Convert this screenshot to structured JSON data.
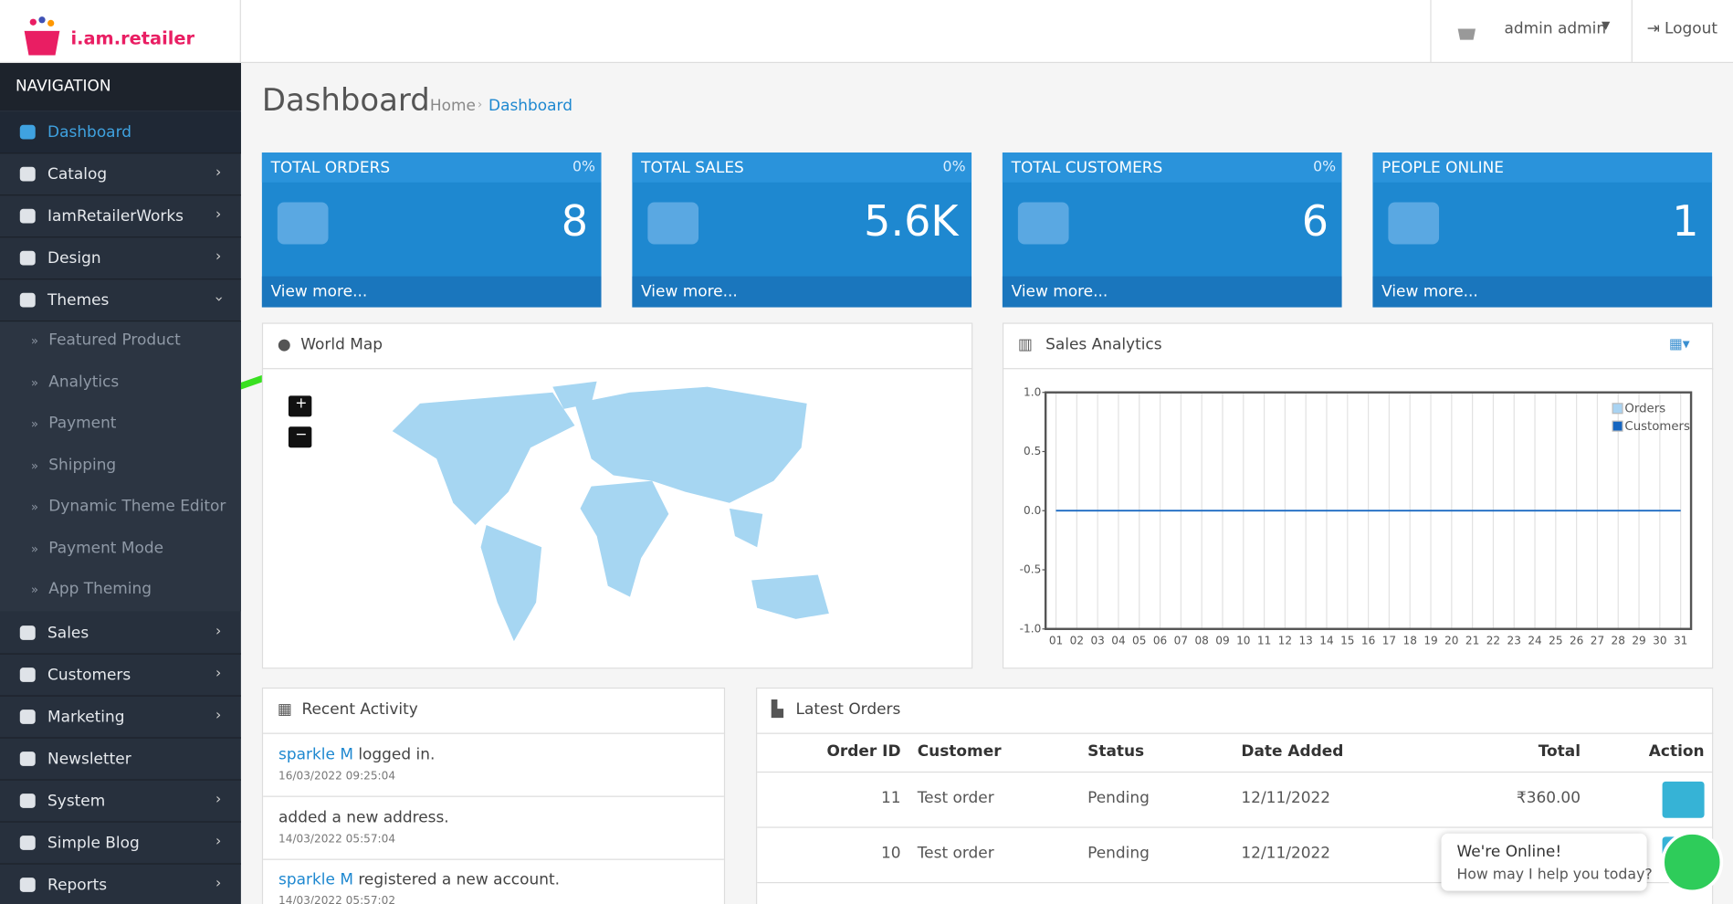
{
  "brand": "i.am.retailer",
  "header": {
    "user": "admin admin",
    "logout": "Logout"
  },
  "nav": {
    "title": "NAVIGATION",
    "items": [
      "Dashboard",
      "Catalog",
      "IamRetailerWorks",
      "Design",
      "Themes",
      "Sales",
      "Customers",
      "Marketing",
      "Newsletter",
      "System",
      "Simple Blog",
      "Reports"
    ],
    "themes_children": [
      "Featured Product",
      "Analytics",
      "Payment",
      "Shipping",
      "Dynamic Theme Editor",
      "Payment Mode",
      "App Theming"
    ]
  },
  "page": {
    "title": "Dashboard",
    "breadcrumb": [
      "Home",
      "Dashboard"
    ]
  },
  "tiles": [
    {
      "title": "TOTAL ORDERS",
      "change": "0%",
      "value": "8",
      "link": "View more..."
    },
    {
      "title": "TOTAL SALES",
      "change": "0%",
      "value": "5.6K",
      "link": "View more..."
    },
    {
      "title": "TOTAL CUSTOMERS",
      "change": "0%",
      "value": "6",
      "link": "View more..."
    },
    {
      "title": "PEOPLE ONLINE",
      "value": "1",
      "link": "View more..."
    }
  ],
  "world_map": {
    "title": "World Map",
    "zoom_in": "+",
    "zoom_out": "−"
  },
  "sales_analytics": {
    "title": "Sales Analytics",
    "ylim": [
      -1,
      1
    ],
    "yticks": [
      {
        "value": 1,
        "label": "1.0"
      },
      {
        "value": 0.5,
        "label": "0.5"
      },
      {
        "value": 0,
        "label": "0.0"
      },
      {
        "value": -0.5,
        "label": "-0.5"
      },
      {
        "value": -1,
        "label": "-1.0"
      }
    ],
    "categories": [
      "01",
      "02",
      "03",
      "04",
      "05",
      "06",
      "07",
      "08",
      "09",
      "10",
      "11",
      "12",
      "13",
      "14",
      "15",
      "16",
      "17",
      "18",
      "19",
      "20",
      "21",
      "22",
      "23",
      "24",
      "25",
      "26",
      "27",
      "28",
      "29",
      "30",
      "31"
    ],
    "series": [
      {
        "name": "Orders",
        "color": "#a9d3f2",
        "values": [
          0,
          0,
          0,
          0,
          0,
          0,
          0,
          0,
          0,
          0,
          0,
          0,
          0,
          0,
          0,
          0,
          0,
          0,
          0,
          0,
          0,
          0,
          0,
          0,
          0,
          0,
          0,
          0,
          0,
          0,
          0
        ]
      },
      {
        "name": "Customers",
        "color": "#1565c0",
        "values": [
          0,
          0,
          0,
          0,
          0,
          0,
          0,
          0,
          0,
          0,
          0,
          0,
          0,
          0,
          0,
          0,
          0,
          0,
          0,
          0,
          0,
          0,
          0,
          0,
          0,
          0,
          0,
          0,
          0,
          0,
          0
        ]
      }
    ]
  },
  "recent_activity": {
    "title": "Recent Activity",
    "items": [
      {
        "user": "sparkle M",
        "text": "logged in.",
        "time": "16/03/2022 09:25:04"
      },
      {
        "text": "added a new address.",
        "time": "14/03/2022 05:57:04"
      },
      {
        "user": "sparkle M",
        "text": "registered a new account.",
        "time": "14/03/2022 05:57:02"
      }
    ]
  },
  "latest_orders": {
    "title": "Latest Orders",
    "columns": [
      "Order ID",
      "Customer",
      "Status",
      "Date Added",
      "Total",
      "Action"
    ],
    "rows": [
      [
        "11",
        "Test order",
        "Pending",
        "12/11/2022",
        "₹360.00"
      ],
      [
        "10",
        "Test order",
        "Pending",
        "12/11/2022"
      ]
    ]
  },
  "chat": {
    "title": "We're Online!",
    "text": "How may I help you today?"
  }
}
